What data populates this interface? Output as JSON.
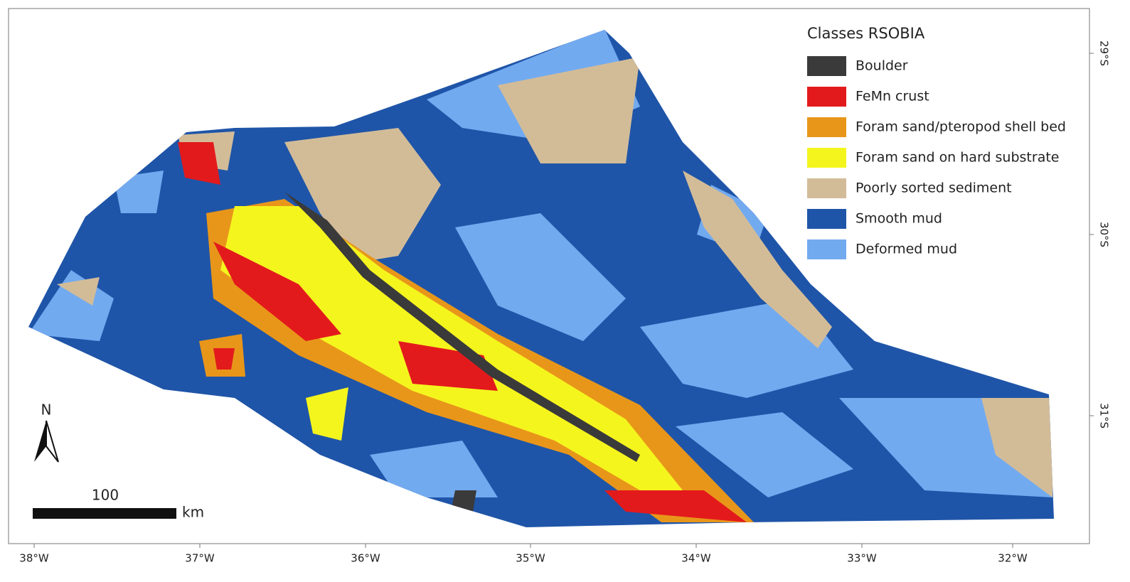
{
  "legend": {
    "title": "Classes RSOBIA",
    "items": [
      {
        "label": "Boulder",
        "color": "#3a3a3a"
      },
      {
        "label": "FeMn crust",
        "color": "#e31a1c"
      },
      {
        "label": "Foram sand/pteropod shell bed",
        "color": "#e8961a"
      },
      {
        "label": "Foram sand on hard substrate",
        "color": "#f5f51e"
      },
      {
        "label": "Poorly sorted sediment",
        "color": "#d2bc98"
      },
      {
        "label": "Smooth mud",
        "color": "#1f55a8"
      },
      {
        "label": "Deformed mud",
        "color": "#72aaf0"
      }
    ]
  },
  "axes": {
    "longitude_labels": [
      "38°W",
      "37°W",
      "36°W",
      "35°W",
      "34°W",
      "33°W",
      "32°W"
    ],
    "latitude_labels": [
      "29°S",
      "30°S",
      "31°S"
    ]
  },
  "north_arrow": "N",
  "scale_bar": {
    "distance": "100",
    "unit": "km"
  }
}
